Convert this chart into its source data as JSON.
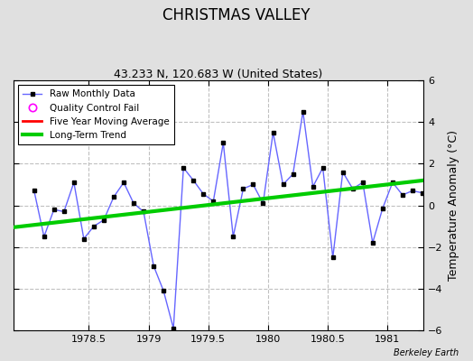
{
  "title": "CHRISTMAS VALLEY",
  "subtitle": "43.233 N, 120.683 W (United States)",
  "ylabel": "Temperature Anomaly (°C)",
  "watermark": "Berkeley Earth",
  "ylim": [
    -6,
    6
  ],
  "xlim": [
    1977.87,
    1981.3
  ],
  "background_color": "#e0e0e0",
  "plot_bg_color": "#ffffff",
  "grid_color": "#c0c0c0",
  "raw_x": [
    1978.042,
    1978.125,
    1978.208,
    1978.292,
    1978.375,
    1978.458,
    1978.542,
    1978.625,
    1978.708,
    1978.792,
    1978.875,
    1978.958,
    1979.042,
    1979.125,
    1979.208,
    1979.292,
    1979.375,
    1979.458,
    1979.542,
    1979.625,
    1979.708,
    1979.792,
    1979.875,
    1979.958,
    1980.042,
    1980.125,
    1980.208,
    1980.292,
    1980.375,
    1980.458,
    1980.542,
    1980.625,
    1980.708,
    1980.792,
    1980.875,
    1980.958,
    1981.042,
    1981.125,
    1981.208,
    1981.292
  ],
  "raw_y": [
    0.7,
    -1.5,
    -0.2,
    -0.3,
    1.1,
    -1.6,
    -1.0,
    -0.7,
    0.4,
    1.1,
    0.1,
    -0.3,
    -2.9,
    -4.1,
    -5.9,
    1.8,
    1.2,
    0.55,
    0.2,
    3.0,
    -1.5,
    0.8,
    1.0,
    0.1,
    3.5,
    1.0,
    1.5,
    4.5,
    0.9,
    1.8,
    -2.5,
    1.6,
    0.8,
    1.1,
    -1.8,
    -0.15,
    1.1,
    0.5,
    0.7,
    0.6
  ],
  "trend_x": [
    1977.87,
    1981.3
  ],
  "trend_y": [
    -1.05,
    1.2
  ],
  "raw_line_color": "#6666ff",
  "marker_color": "black",
  "marker_style": "s",
  "trend_color": "#00cc00",
  "moving_avg_color": "red",
  "qc_fail_color": "magenta",
  "xticks": [
    1978.5,
    1979.0,
    1979.5,
    1980.0,
    1980.5,
    1981.0
  ],
  "xtick_labels": [
    "1978.5",
    "1979",
    "1979.5",
    "1980",
    "1980.5",
    "1981"
  ],
  "yticks": [
    -6,
    -4,
    -2,
    0,
    2,
    4,
    6
  ],
  "title_fontsize": 12,
  "subtitle_fontsize": 9,
  "tick_fontsize": 8,
  "ylabel_fontsize": 9
}
